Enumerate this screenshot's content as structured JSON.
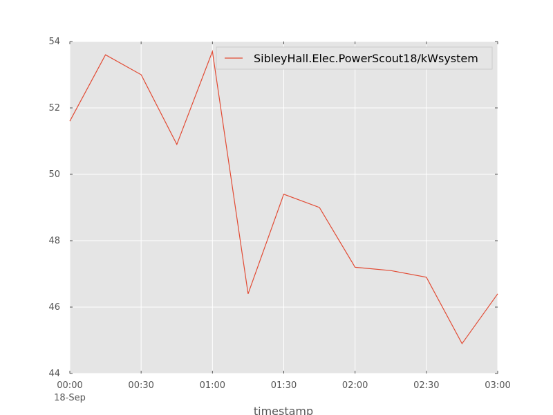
{
  "chart_data": {
    "type": "line",
    "title": "",
    "xlabel": "timestamp",
    "ylabel": "",
    "x": [
      "00:00",
      "00:15",
      "00:30",
      "00:45",
      "01:00",
      "01:15",
      "01:30",
      "01:45",
      "02:00",
      "02:15",
      "02:30",
      "02:45",
      "03:00"
    ],
    "x_date_label": "18-Sep",
    "x_tick_labels": [
      "00:00",
      "00:30",
      "01:00",
      "01:30",
      "02:00",
      "02:30",
      "03:00"
    ],
    "y_ticks": [
      44,
      46,
      48,
      50,
      52,
      54
    ],
    "ylim": [
      44,
      54
    ],
    "series": [
      {
        "name": "SibleyHall.Elec.PowerScout18/kWsystem",
        "color": "#e24a33",
        "values": [
          51.6,
          53.6,
          53.0,
          50.9,
          53.7,
          46.4,
          49.4,
          49.0,
          47.2,
          47.1,
          46.9,
          44.9,
          46.4
        ]
      }
    ],
    "legend_position": "top-right",
    "grid": true,
    "style": "ggplot",
    "background_color": "#e5e5e5",
    "grid_color": "#ffffff"
  }
}
